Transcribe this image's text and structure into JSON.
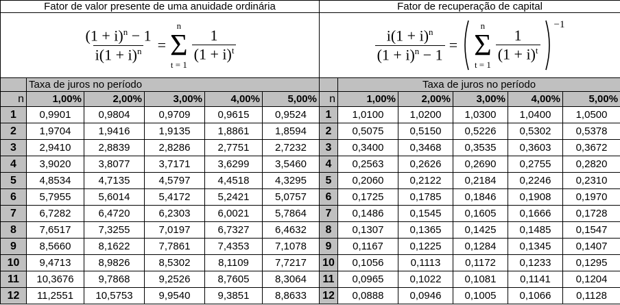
{
  "left": {
    "title": "Fator de valor presente de uma anuidade ordinária",
    "formula": {
      "num": "(1 + i)",
      "num_exp": "n",
      "num_tail": " − 1",
      "den": "i(1 + i)",
      "den_exp": "n",
      "eq": "=",
      "sigma": "Σ",
      "sigma_top": "n",
      "sigma_bottom": "t = 1",
      "frac_num": "1",
      "frac_den": "(1 + i)",
      "frac_den_exp": "t"
    },
    "group_header": "Taxa de juros no período",
    "n_header": "n",
    "rates": [
      "1,00%",
      "2,00%",
      "3,00%",
      "4,00%",
      "5,00%"
    ],
    "rows": [
      [
        "1",
        "0,9901",
        "0,9804",
        "0,9709",
        "0,9615",
        "0,9524"
      ],
      [
        "2",
        "1,9704",
        "1,9416",
        "1,9135",
        "1,8861",
        "1,8594"
      ],
      [
        "3",
        "2,9410",
        "2,8839",
        "2,8286",
        "2,7751",
        "2,7232"
      ],
      [
        "4",
        "3,9020",
        "3,8077",
        "3,7171",
        "3,6299",
        "3,5460"
      ],
      [
        "5",
        "4,8534",
        "4,7135",
        "4,5797",
        "4,4518",
        "4,3295"
      ],
      [
        "6",
        "5,7955",
        "5,6014",
        "5,4172",
        "5,2421",
        "5,0757"
      ],
      [
        "7",
        "6,7282",
        "6,4720",
        "6,2303",
        "6,0021",
        "5,7864"
      ],
      [
        "8",
        "7,6517",
        "7,3255",
        "7,0197",
        "6,7327",
        "6,4632"
      ],
      [
        "9",
        "8,5660",
        "8,1622",
        "7,7861",
        "7,4353",
        "7,1078"
      ],
      [
        "10",
        "9,4713",
        "8,9826",
        "8,5302",
        "8,1109",
        "7,7217"
      ],
      [
        "11",
        "10,3676",
        "9,7868",
        "9,2526",
        "8,7605",
        "8,3064"
      ],
      [
        "12",
        "11,2551",
        "10,5753",
        "9,9540",
        "9,3851",
        "8,8633"
      ]
    ]
  },
  "right": {
    "title": "Fator de recuperação de capital",
    "formula": {
      "num": "i(1 + i)",
      "num_exp": "n",
      "den": "(1 + i)",
      "den_exp": "n",
      "den_tail": " − 1",
      "eq": "=",
      "sigma": "Σ",
      "sigma_top": "n",
      "sigma_bottom": "t = 1",
      "frac_num": "1",
      "frac_den": "(1 + i)",
      "frac_den_exp": "t",
      "outer_exp": "−1"
    },
    "group_header": "Taxa de juros no período",
    "n_header": "n",
    "rates": [
      "1,00%",
      "2,00%",
      "3,00%",
      "4,00%",
      "5,00%"
    ],
    "rows": [
      [
        "1",
        "1,0100",
        "1,0200",
        "1,0300",
        "1,0400",
        "1,0500"
      ],
      [
        "2",
        "0,5075",
        "0,5150",
        "0,5226",
        "0,5302",
        "0,5378"
      ],
      [
        "3",
        "0,3400",
        "0,3468",
        "0,3535",
        "0,3603",
        "0,3672"
      ],
      [
        "4",
        "0,2563",
        "0,2626",
        "0,2690",
        "0,2755",
        "0,2820"
      ],
      [
        "5",
        "0,2060",
        "0,2122",
        "0,2184",
        "0,2246",
        "0,2310"
      ],
      [
        "6",
        "0,1725",
        "0,1785",
        "0,1846",
        "0,1908",
        "0,1970"
      ],
      [
        "7",
        "0,1486",
        "0,1545",
        "0,1605",
        "0,1666",
        "0,1728"
      ],
      [
        "8",
        "0,1307",
        "0,1365",
        "0,1425",
        "0,1485",
        "0,1547"
      ],
      [
        "9",
        "0,1167",
        "0,1225",
        "0,1284",
        "0,1345",
        "0,1407"
      ],
      [
        "10",
        "0,1056",
        "0,1113",
        "0,1172",
        "0,1233",
        "0,1295"
      ],
      [
        "11",
        "0,0965",
        "0,1022",
        "0,1081",
        "0,1141",
        "0,1204"
      ],
      [
        "12",
        "0,0888",
        "0,0946",
        "0,1005",
        "0,1066",
        "0,1128"
      ]
    ]
  }
}
